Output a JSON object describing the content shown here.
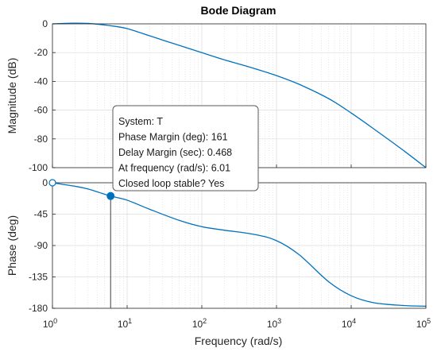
{
  "chart_data": {
    "type": "line",
    "title": "Bode Diagram",
    "xlabel": "Frequency  (rad/s)",
    "x_scale": "log",
    "xlim": [
      1,
      100000
    ],
    "x_ticks": [
      {
        "base": "10",
        "exp": "0"
      },
      {
        "base": "10",
        "exp": "1"
      },
      {
        "base": "10",
        "exp": "2"
      },
      {
        "base": "10",
        "exp": "3"
      },
      {
        "base": "10",
        "exp": "4"
      },
      {
        "base": "10",
        "exp": "5"
      }
    ],
    "grid": true,
    "line_color": "#0072bd",
    "panels": [
      {
        "ylabel": "Magnitude (dB)",
        "ylim": [
          -100,
          0
        ],
        "y_ticks": [
          "0",
          "-20",
          "-40",
          "-60",
          "-80",
          "-100"
        ],
        "series": [
          {
            "x": [
              1,
              1.5,
              2,
              3,
              5,
              6.01,
              10,
              20,
              30,
              50,
              100,
              200,
              500,
              1000,
              2000,
              5000,
              10000,
              20000,
              50000,
              100000
            ],
            "y": [
              0,
              0.3,
              0.5,
              0.3,
              -0.8,
              -1.3,
              -3.3,
              -8.3,
              -11.3,
              -15,
              -20,
              -25,
              -31,
              -36,
              -42,
              -52,
              -62,
              -73,
              -88,
              -100
            ]
          }
        ]
      },
      {
        "ylabel": "Phase (deg)",
        "ylim": [
          -180,
          0
        ],
        "y_ticks": [
          "0",
          "-45",
          "-90",
          "-135",
          "-180"
        ],
        "series": [
          {
            "x": [
              1,
              2,
              3,
              6.01,
              10,
              20,
              50,
              100,
              200,
              500,
              1000,
              2000,
              5000,
              10000,
              20000,
              50000,
              100000
            ],
            "y": [
              0,
              -5,
              -9,
              -19,
              -25,
              -38,
              -54,
              -63,
              -68,
              -74,
              -83,
              -103,
              -142,
              -162,
              -172,
              -176,
              -177
            ]
          }
        ]
      }
    ],
    "marker": {
      "x": 6.01,
      "y": -19,
      "color": "#0072bd",
      "start_circle": {
        "x": 1,
        "y": 0
      }
    },
    "tooltip": {
      "lines": [
        "System: T",
        "Phase Margin (deg): 161",
        "Delay Margin (sec): 0.468",
        "At frequency (rad/s): 6.01",
        "Closed loop stable? Yes"
      ]
    }
  }
}
